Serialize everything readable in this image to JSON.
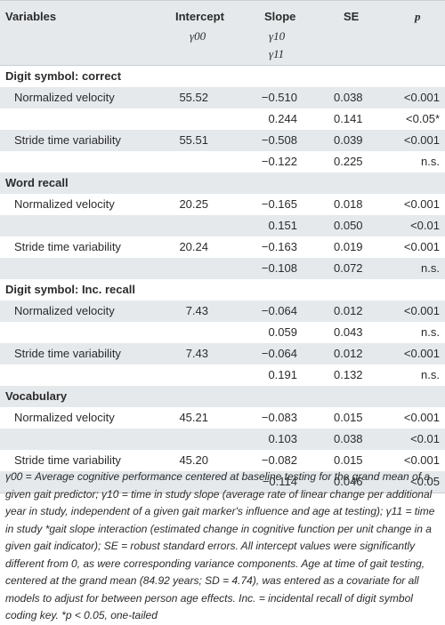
{
  "header": {
    "variables": "Variables",
    "intercept": "Intercept",
    "intercept_sym": "γ00",
    "slope": "Slope",
    "slope_sym1": "γ10",
    "slope_sym2": "γ11",
    "se": "SE",
    "p": "p"
  },
  "groups": [
    {
      "title": "Digit symbol: correct",
      "rows": [
        {
          "label": "Normalized velocity",
          "intercept": "55.52",
          "slope": "−0.510",
          "se": "0.038",
          "p": "<0.001"
        },
        {
          "label": "",
          "intercept": "",
          "slope": "0.244",
          "se": "0.141",
          "p": "<0.05*"
        },
        {
          "label": "Stride time variability",
          "intercept": "55.51",
          "slope": "−0.508",
          "se": "0.039",
          "p": "<0.001"
        },
        {
          "label": "",
          "intercept": "",
          "slope": "−0.122",
          "se": "0.225",
          "p": "n.s."
        }
      ]
    },
    {
      "title": "Word recall",
      "rows": [
        {
          "label": "Normalized velocity",
          "intercept": "20.25",
          "slope": "−0.165",
          "se": "0.018",
          "p": "<0.001"
        },
        {
          "label": "",
          "intercept": "",
          "slope": "0.151",
          "se": "0.050",
          "p": "<0.01"
        },
        {
          "label": "Stride time variability",
          "intercept": "20.24",
          "slope": "−0.163",
          "se": "0.019",
          "p": "<0.001"
        },
        {
          "label": "",
          "intercept": "",
          "slope": "−0.108",
          "se": "0.072",
          "p": "n.s."
        }
      ]
    },
    {
      "title": "Digit symbol: Inc. recall",
      "rows": [
        {
          "label": "Normalized velocity",
          "intercept": "7.43",
          "slope": "−0.064",
          "se": "0.012",
          "p": "<0.001"
        },
        {
          "label": "",
          "intercept": "",
          "slope": "0.059",
          "se": "0.043",
          "p": "n.s."
        },
        {
          "label": "Stride time variability",
          "intercept": "7.43",
          "slope": "−0.064",
          "se": "0.012",
          "p": "<0.001"
        },
        {
          "label": "",
          "intercept": "",
          "slope": "0.191",
          "se": "0.132",
          "p": "n.s."
        }
      ]
    },
    {
      "title": "Vocabulary",
      "rows": [
        {
          "label": "Normalized velocity",
          "intercept": "45.21",
          "slope": "−0.083",
          "se": "0.015",
          "p": "<0.001"
        },
        {
          "label": "",
          "intercept": "",
          "slope": "0.103",
          "se": "0.038",
          "p": "<0.01"
        },
        {
          "label": "Stride time variability",
          "intercept": "45.20",
          "slope": "−0.082",
          "se": "0.015",
          "p": "<0.001"
        },
        {
          "label": "",
          "intercept": "",
          "slope": "−0.114",
          "se": "0.046",
          "p": "<0.05"
        }
      ]
    }
  ],
  "footnote": "γ00 = Average cognitive performance centered at baseline testing for the grand mean of a given gait predictor; γ10 = time in study slope (average rate of linear change per additional year in study, independent of a given gait marker's influence and age at testing); γ11 = time in study *gait slope interaction (estimated change in cognitive function per unit change in a given gait indicator); SE = robust standard errors. All intercept values were significantly different from 0, as were corresponding variance components. Age at time of gait testing, centered at the grand mean (84.92 years; SD = 4.74), was entered as a covariate for all models to adjust for between person age effects. Inc. = incidental recall of digit symbol coding key. *p < 0.05, one-tailed",
  "colors": {
    "header_bg": "#e5e9ec",
    "row_shade": "#e5e9ec",
    "rule": "#c9ced2",
    "text": "#2b2b2b"
  }
}
